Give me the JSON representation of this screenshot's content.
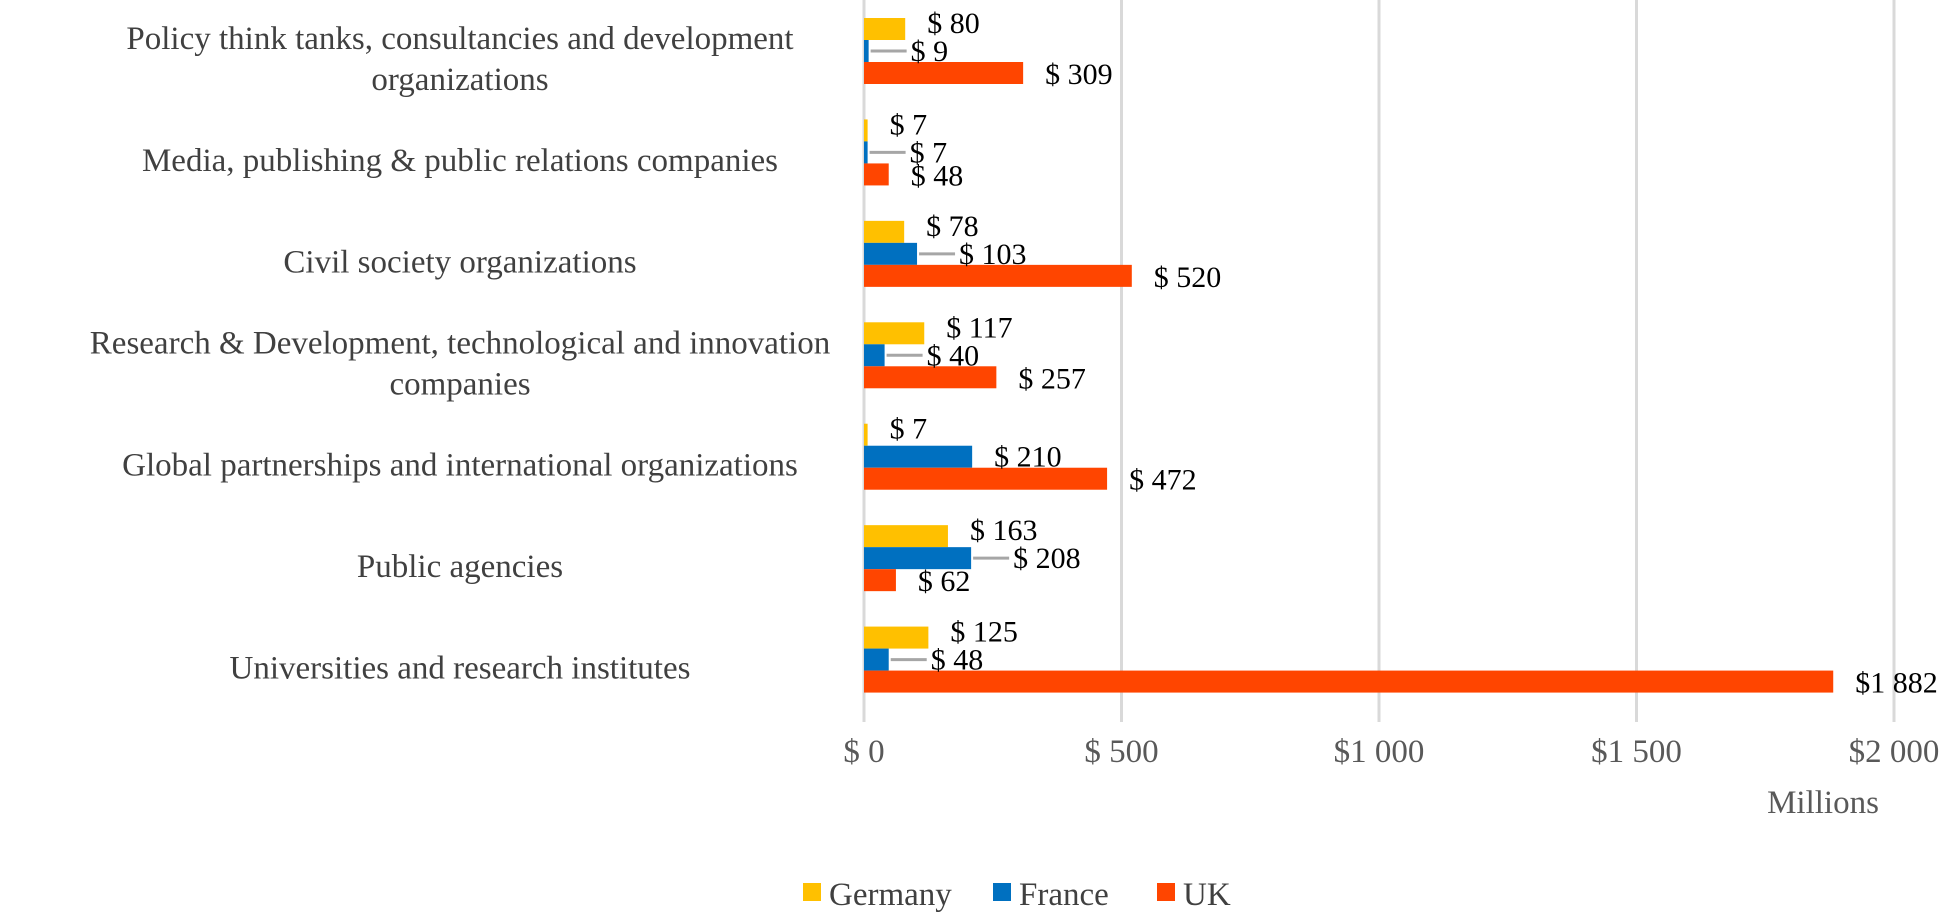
{
  "chart_data": {
    "type": "bar",
    "orientation": "horizontal",
    "categories": [
      "Policy think tanks, consultancies and development organizations",
      "Media, publishing & public relations companies",
      "Civil society organizations",
      "Research & Development, technological and innovation companies",
      "Global partnerships and international organizations",
      "Public agencies",
      "Universities and research institutes"
    ],
    "category_lines": [
      [
        "Policy think tanks, consultancies and development",
        "organizations"
      ],
      [
        "Media, publishing & public relations companies"
      ],
      [
        "Civil society organizations"
      ],
      [
        "Research & Development, technological and innovation",
        "companies"
      ],
      [
        "Global partnerships and international organizations"
      ],
      [
        "Public agencies"
      ],
      [
        "Universities and research institutes"
      ]
    ],
    "series": [
      {
        "name": "Germany",
        "color": "#FFC000",
        "values": [
          80,
          7,
          78,
          117,
          7,
          163,
          125
        ],
        "labels": [
          "$ 80",
          "$ 7",
          "$ 78",
          "$ 117",
          "$ 7",
          "$ 163",
          "$ 125"
        ]
      },
      {
        "name": "France",
        "color": "#0070C0",
        "values": [
          9,
          7,
          103,
          40,
          210,
          208,
          48
        ],
        "labels": [
          "$ 9",
          "$ 7",
          "$ 103",
          "$ 40",
          "$ 210",
          "$ 208",
          "$ 48"
        ]
      },
      {
        "name": "UK",
        "color": "#FF4500",
        "values": [
          309,
          48,
          520,
          257,
          472,
          62,
          1882
        ],
        "labels": [
          "$ 309",
          "$ 48",
          "$ 520",
          "$ 257",
          "$ 472",
          "$ 62",
          "$1 882"
        ]
      }
    ],
    "xlim": [
      0,
      2000
    ],
    "xticks": [
      0,
      500,
      1000,
      1500,
      2000
    ],
    "xtick_labels": [
      "$ 0",
      "$ 500",
      "$1 000",
      "$1 500",
      "$2 000"
    ],
    "x_unit": "Millions",
    "grid": true,
    "legend": "bottom"
  }
}
